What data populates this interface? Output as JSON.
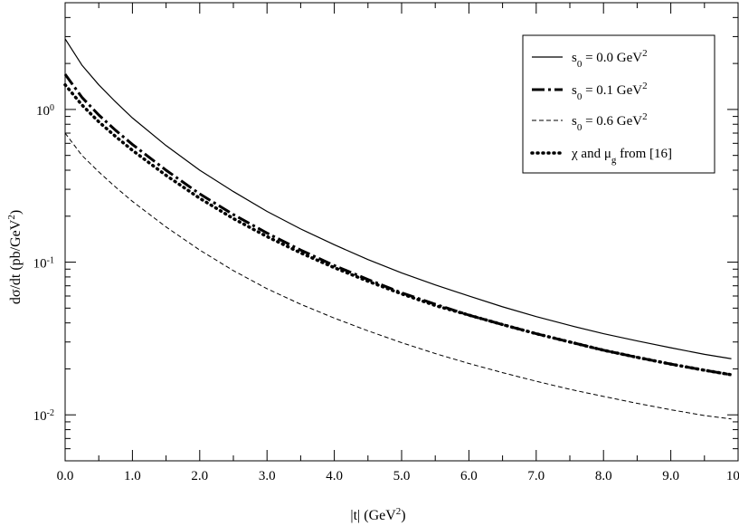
{
  "chart_data": {
    "type": "line",
    "title": "",
    "xlabel": "|t| (GeV",
    "xlabel_unit_exp": "2",
    "xlabel_close": ")",
    "ylabel": "dσ/dt (pb/GeV",
    "ylabel_unit_exp": "2",
    "ylabel_close": ")",
    "xlim": [
      0,
      10
    ],
    "ylim": [
      0.005,
      5
    ],
    "yscale": "log",
    "x_ticks": [
      {
        "value": 0,
        "label": "0.0"
      },
      {
        "value": 1,
        "label": "1.0"
      },
      {
        "value": 2,
        "label": "2.0"
      },
      {
        "value": 3,
        "label": "3.0"
      },
      {
        "value": 4,
        "label": "4.0"
      },
      {
        "value": 5,
        "label": "5.0"
      },
      {
        "value": 6,
        "label": "6.0"
      },
      {
        "value": 7,
        "label": "7.0"
      },
      {
        "value": 8,
        "label": "8.0"
      },
      {
        "value": 9,
        "label": "9.0"
      },
      {
        "value": 10,
        "label": "10.0"
      }
    ],
    "y_ticks": [
      {
        "value": 1,
        "base": "10",
        "exp": "0"
      },
      {
        "value": 0.1,
        "base": "10",
        "exp": "-1"
      },
      {
        "value": 0.01,
        "base": "10",
        "exp": "-2"
      }
    ],
    "grid": false,
    "legend_position": "top-right",
    "x": [
      0,
      0.25,
      0.5,
      0.75,
      1,
      1.5,
      2,
      2.5,
      3,
      3.5,
      4,
      4.5,
      5,
      5.5,
      6,
      6.5,
      7,
      7.5,
      8,
      8.5,
      9,
      9.5,
      9.9
    ],
    "series": [
      {
        "name_base": "s",
        "name_sub": "0",
        "name_mid": " = 0.0 GeV",
        "name_sup": "2",
        "style": "solid",
        "values": [
          2.9,
          1.95,
          1.45,
          1.12,
          0.88,
          0.58,
          0.4,
          0.29,
          0.215,
          0.165,
          0.13,
          0.104,
          0.085,
          0.071,
          0.06,
          0.051,
          0.044,
          0.0385,
          0.034,
          0.0305,
          0.0275,
          0.0249,
          0.0233
        ]
      },
      {
        "name_base": "s",
        "name_sub": "0",
        "name_mid": " = 0.1 GeV",
        "name_sup": "2",
        "style": "dashdot",
        "values": [
          1.7,
          1.2,
          0.92,
          0.73,
          0.59,
          0.4,
          0.28,
          0.205,
          0.155,
          0.12,
          0.095,
          0.077,
          0.063,
          0.053,
          0.045,
          0.039,
          0.034,
          0.03,
          0.0265,
          0.0238,
          0.0215,
          0.0196,
          0.0183
        ]
      },
      {
        "name_base": "s",
        "name_sub": "0",
        "name_mid": " = 0.6 GeV",
        "name_sup": "2",
        "style": "dashed",
        "values": [
          0.7,
          0.5,
          0.39,
          0.31,
          0.25,
          0.17,
          0.12,
          0.088,
          0.067,
          0.053,
          0.043,
          0.0355,
          0.0297,
          0.0252,
          0.0217,
          0.0189,
          0.0166,
          0.0147,
          0.0132,
          0.0119,
          0.0108,
          0.0099,
          0.0094
        ]
      },
      {
        "name_base": "χ and μ",
        "name_sub": "g",
        "name_mid": " from [16]",
        "name_sup": "",
        "style": "dotted",
        "values": [
          1.45,
          1.07,
          0.83,
          0.665,
          0.54,
          0.37,
          0.262,
          0.193,
          0.147,
          0.115,
          0.092,
          0.075,
          0.062,
          0.052,
          0.045,
          0.039,
          0.034,
          0.03,
          0.0265,
          0.0238,
          0.0215,
          0.0196,
          0.0183
        ]
      }
    ]
  }
}
